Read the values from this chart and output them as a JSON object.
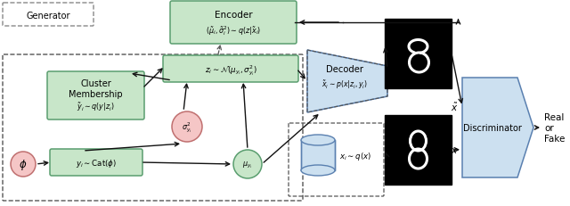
{
  "bg_color": "#ffffff",
  "green_box_color": "#c8e6c9",
  "green_box_edge": "#5a9e6f",
  "blue_box_color": "#cce0f0",
  "blue_box_edge": "#5a80b0",
  "pink_circle_color": "#f5c6c6",
  "pink_circle_edge": "#c07070",
  "generator_label": "Generator",
  "encoder_label": "Encoder",
  "encoder_formula": "$(\\tilde{\\mu}_i, \\tilde{\\sigma}_i^2) \\sim q(z|\\tilde{x}_i)$",
  "cluster_label": "Cluster\nMembership",
  "cluster_formula": "$\\tilde{y}_i \\sim q(y|z_i)$",
  "z_formula": "$z_i \\sim \\mathcal{N}(\\mu_{y_i}, \\sigma_{y_i}^2)$",
  "decoder_label": "Decoder",
  "decoder_formula": "$\\tilde{x}_i \\sim p(x|z_i, y_i)$",
  "phi_label": "$\\phi$",
  "y_formula": "$y_i \\sim \\mathrm{Cat}(\\phi)$",
  "sigma_label": "$\\sigma_{y_i}^2$",
  "mu_label": "$\\mu_{y_i}$",
  "xi_formula": "$x_i \\sim q(x)$",
  "discriminator_label": "Discriminator",
  "real_fake_label": "Real\nor\nFake",
  "xtilde_label": "$\\tilde{x}$",
  "x_label": "$x$",
  "arrow_color": "#111111",
  "dashed_color": "#555555"
}
